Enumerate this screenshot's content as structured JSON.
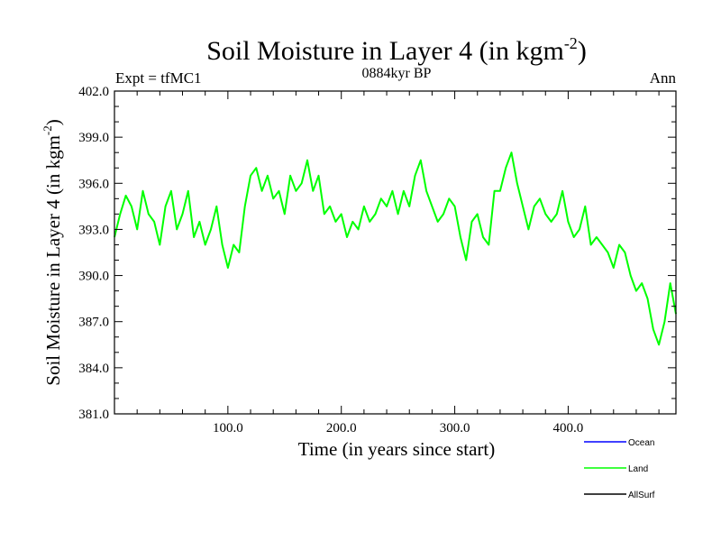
{
  "chart_data": {
    "type": "line",
    "title": "Soil Moisture in Layer 4 (in kgm",
    "title_sup": "-2",
    "title_close": ")",
    "subtitle": "0884kyr BP",
    "left_label": "Expt = tfMC1",
    "right_label": "Ann",
    "xlabel": "Time (in years since start)",
    "ylabel": "Soil Moisture in Layer 4 (in kgm",
    "ylabel_sup": "-2",
    "ylabel_close": ")",
    "xlim": [
      0,
      495
    ],
    "ylim": [
      381,
      402
    ],
    "xticks": [
      100,
      200,
      300,
      400
    ],
    "xtick_labels": [
      "100.0",
      "200.0",
      "300.0",
      "400.0"
    ],
    "yticks": [
      381,
      384,
      387,
      390,
      393,
      396,
      399,
      402
    ],
    "ytick_labels": [
      "381.0",
      "384.0",
      "387.0",
      "390.0",
      "393.0",
      "396.0",
      "399.0",
      "402.0"
    ],
    "legend": [
      {
        "name": "Ocean",
        "color": "#0000ff"
      },
      {
        "name": "Land",
        "color": "#00ff00"
      },
      {
        "name": "AllSurf",
        "color": "#000000"
      }
    ],
    "series": [
      {
        "name": "Land",
        "color": "#00ff00",
        "x": [
          0,
          5,
          10,
          15,
          20,
          25,
          30,
          35,
          40,
          45,
          50,
          55,
          60,
          65,
          70,
          75,
          80,
          85,
          90,
          95,
          100,
          105,
          110,
          115,
          120,
          125,
          130,
          135,
          140,
          145,
          150,
          155,
          160,
          165,
          170,
          175,
          180,
          185,
          190,
          195,
          200,
          205,
          210,
          215,
          220,
          225,
          230,
          235,
          240,
          245,
          250,
          255,
          260,
          265,
          270,
          275,
          280,
          285,
          290,
          295,
          300,
          305,
          310,
          315,
          320,
          325,
          330,
          335,
          340,
          345,
          350,
          355,
          360,
          365,
          370,
          375,
          380,
          385,
          390,
          395,
          400,
          405,
          410,
          415,
          420,
          425,
          430,
          435,
          440,
          445,
          450,
          455,
          460,
          465,
          470,
          475,
          480,
          485,
          490,
          495
        ],
        "values": [
          392.5,
          394.0,
          395.2,
          394.5,
          393.0,
          395.5,
          394.0,
          393.5,
          392.0,
          394.5,
          395.5,
          393.0,
          394.0,
          395.5,
          392.5,
          393.5,
          392.0,
          393.0,
          394.5,
          392.0,
          390.5,
          392.0,
          391.5,
          394.5,
          396.5,
          397.0,
          395.5,
          396.5,
          395.0,
          395.5,
          394.0,
          396.5,
          395.5,
          396.0,
          397.5,
          395.5,
          396.5,
          394.0,
          394.5,
          393.5,
          394.0,
          392.5,
          393.5,
          393.0,
          394.5,
          393.5,
          394.0,
          395.0,
          394.5,
          395.5,
          394.0,
          395.5,
          394.5,
          396.5,
          397.5,
          395.5,
          394.5,
          393.5,
          394.0,
          395.0,
          394.5,
          392.5,
          391.0,
          393.5,
          394.0,
          392.5,
          392.0,
          395.5,
          395.5,
          397.0,
          398.0,
          396.0,
          394.5,
          393.0,
          394.5,
          395.0,
          394.0,
          393.5,
          394.0,
          395.5,
          393.5,
          392.5,
          393.0,
          394.5,
          392.0,
          392.5,
          392.0,
          391.5,
          390.5,
          392.0,
          391.5,
          390.0,
          389.0,
          389.5,
          388.5,
          386.5,
          385.5,
          387.0,
          389.5,
          387.5
        ]
      }
    ]
  }
}
